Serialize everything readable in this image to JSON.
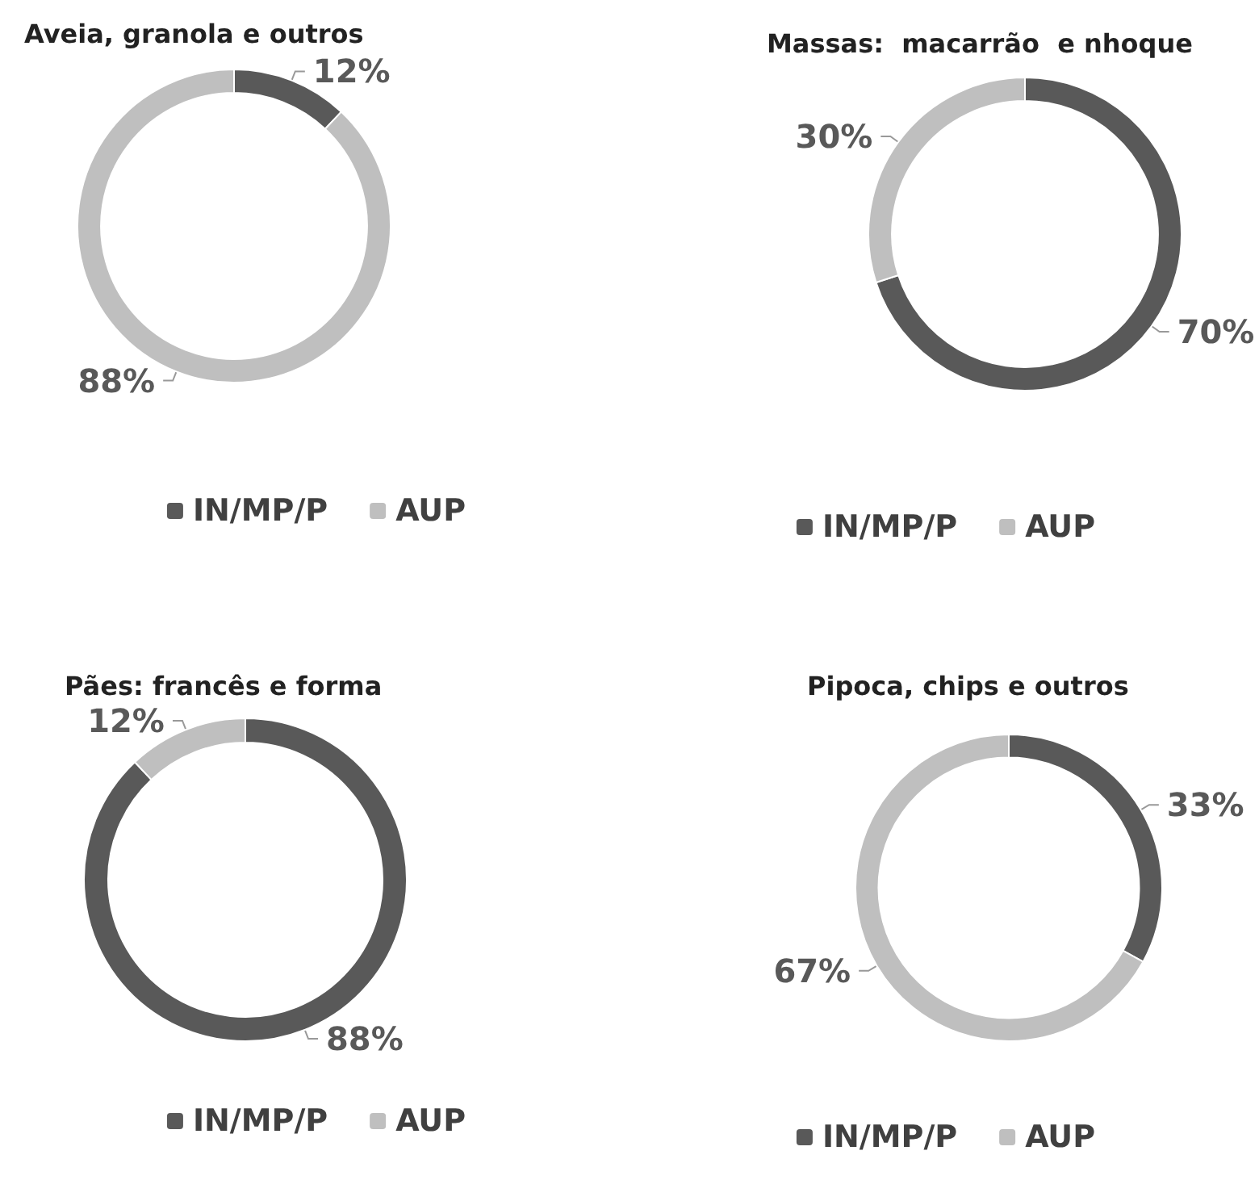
{
  "chart_data": [
    {
      "type": "donut",
      "title": "Aveia, granola e outros",
      "categories": [
        "IN/MP/P",
        "AUP"
      ],
      "values": [
        12,
        88
      ],
      "value_labels": [
        "12%",
        "88%"
      ],
      "colors": [
        "#595959",
        "#bfbfbf"
      ],
      "legend": "bottom"
    },
    {
      "type": "donut",
      "title": "Massas:  macarrão  e nhoque",
      "categories": [
        "IN/MP/P",
        "AUP"
      ],
      "values": [
        70,
        30
      ],
      "value_labels": [
        "70%",
        "30%"
      ],
      "colors": [
        "#595959",
        "#bfbfbf"
      ],
      "legend": "bottom"
    },
    {
      "type": "donut",
      "title": "Pães: francês e forma",
      "categories": [
        "IN/MP/P",
        "AUP"
      ],
      "values": [
        88,
        12
      ],
      "value_labels": [
        "88%",
        "12%"
      ],
      "colors": [
        "#595959",
        "#bfbfbf"
      ],
      "legend": "bottom"
    },
    {
      "type": "donut",
      "title": "Pipoca, chips e outros",
      "categories": [
        "IN/MP/P",
        "AUP"
      ],
      "values": [
        33,
        67
      ],
      "value_labels": [
        "33%",
        "67%"
      ],
      "colors": [
        "#595959",
        "#bfbfbf"
      ],
      "legend": "bottom"
    }
  ]
}
